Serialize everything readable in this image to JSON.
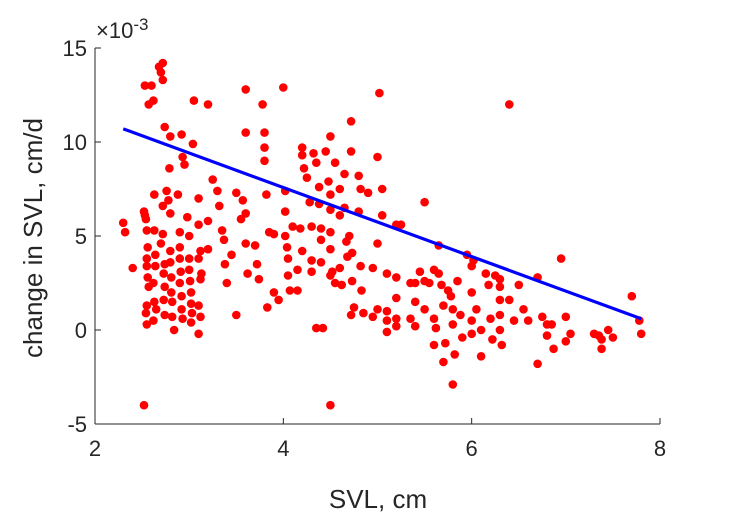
{
  "chart_data": {
    "type": "scatter",
    "title": "",
    "xlabel": "SVL, cm",
    "ylabel": "change in SVL, cm/d",
    "y_exponent_label": "×10",
    "y_exponent_power": "-3",
    "xlim": [
      2,
      8
    ],
    "ylim": [
      -5,
      15
    ],
    "x_ticks": [
      "2",
      "4",
      "6",
      "8"
    ],
    "y_ticks": [
      "-5",
      "0",
      "5",
      "10",
      "15"
    ],
    "grid": false,
    "marker_color": "#ff0000",
    "fit_line_color": "#0000ff",
    "fit_line": {
      "x": [
        2.3,
        7.8
      ],
      "y": [
        10.7,
        0.6
      ]
    },
    "points": [
      [
        2.3,
        5.7
      ],
      [
        2.32,
        5.2
      ],
      [
        2.4,
        3.3
      ],
      [
        2.52,
        6.3
      ],
      [
        2.53,
        6.1
      ],
      [
        2.54,
        5.9
      ],
      [
        2.55,
        5.3
      ],
      [
        2.56,
        4.4
      ],
      [
        2.55,
        3.8
      ],
      [
        2.55,
        3.4
      ],
      [
        2.56,
        2.8
      ],
      [
        2.57,
        2.3
      ],
      [
        2.55,
        1.3
      ],
      [
        2.54,
        0.9
      ],
      [
        2.55,
        0.3
      ],
      [
        2.52,
        -4.0
      ],
      [
        2.53,
        13.0
      ],
      [
        2.57,
        12.0
      ],
      [
        2.6,
        13.0
      ],
      [
        2.62,
        12.2
      ],
      [
        2.63,
        7.2
      ],
      [
        2.63,
        5.3
      ],
      [
        2.64,
        4.0
      ],
      [
        2.64,
        3.4
      ],
      [
        2.62,
        2.5
      ],
      [
        2.63,
        1.5
      ],
      [
        2.65,
        1.1
      ],
      [
        2.62,
        0.5
      ],
      [
        2.68,
        14.0
      ],
      [
        2.7,
        13.7
      ],
      [
        2.72,
        14.2
      ],
      [
        2.72,
        13.3
      ],
      [
        2.74,
        10.8
      ],
      [
        2.72,
        6.6
      ],
      [
        2.72,
        5.1
      ],
      [
        2.7,
        4.6
      ],
      [
        2.74,
        3.5
      ],
      [
        2.73,
        3.0
      ],
      [
        2.74,
        2.3
      ],
      [
        2.73,
        1.6
      ],
      [
        2.74,
        0.8
      ],
      [
        2.76,
        7.4
      ],
      [
        2.78,
        6.9
      ],
      [
        2.79,
        8.6
      ],
      [
        2.8,
        10.3
      ],
      [
        2.8,
        6.2
      ],
      [
        2.8,
        4.2
      ],
      [
        2.8,
        3.6
      ],
      [
        2.81,
        2.8
      ],
      [
        2.81,
        2.0
      ],
      [
        2.82,
        1.5
      ],
      [
        2.82,
        0.7
      ],
      [
        2.84,
        0.0
      ],
      [
        2.88,
        7.2
      ],
      [
        2.9,
        5.2
      ],
      [
        2.9,
        4.4
      ],
      [
        2.9,
        3.8
      ],
      [
        2.91,
        3.1
      ],
      [
        2.9,
        2.5
      ],
      [
        2.92,
        1.8
      ],
      [
        2.92,
        1.1
      ],
      [
        2.93,
        0.6
      ],
      [
        2.92,
        10.4
      ],
      [
        2.93,
        9.2
      ],
      [
        2.95,
        8.8
      ],
      [
        2.98,
        6.0
      ],
      [
        3.0,
        5.0
      ],
      [
        3.0,
        3.8
      ],
      [
        3.0,
        3.2
      ],
      [
        3.01,
        2.6
      ],
      [
        3.02,
        2.0
      ],
      [
        3.02,
        1.4
      ],
      [
        3.03,
        0.9
      ],
      [
        3.02,
        0.4
      ],
      [
        3.04,
        9.9
      ],
      [
        3.05,
        12.2
      ],
      [
        3.1,
        7.0
      ],
      [
        3.1,
        5.6
      ],
      [
        3.12,
        4.2
      ],
      [
        3.1,
        3.8
      ],
      [
        3.13,
        3.0
      ],
      [
        3.12,
        2.7
      ],
      [
        3.1,
        1.3
      ],
      [
        3.12,
        0.7
      ],
      [
        3.1,
        -0.2
      ],
      [
        3.2,
        12.0
      ],
      [
        3.2,
        4.3
      ],
      [
        3.2,
        5.8
      ],
      [
        3.25,
        8.0
      ],
      [
        3.3,
        7.4
      ],
      [
        3.32,
        6.6
      ],
      [
        3.35,
        5.3
      ],
      [
        3.37,
        4.8
      ],
      [
        3.38,
        3.5
      ],
      [
        3.4,
        2.5
      ],
      [
        3.45,
        4.0
      ],
      [
        3.5,
        7.3
      ],
      [
        3.5,
        0.8
      ],
      [
        3.55,
        5.9
      ],
      [
        3.57,
        6.9
      ],
      [
        3.6,
        6.2
      ],
      [
        3.6,
        12.8
      ],
      [
        3.6,
        10.5
      ],
      [
        3.6,
        4.6
      ],
      [
        3.62,
        3.0
      ],
      [
        3.7,
        4.5
      ],
      [
        3.72,
        3.5
      ],
      [
        3.74,
        2.7
      ],
      [
        3.78,
        12.0
      ],
      [
        3.8,
        10.5
      ],
      [
        3.8,
        9.7
      ],
      [
        3.8,
        9.0
      ],
      [
        3.82,
        7.2
      ],
      [
        3.85,
        5.2
      ],
      [
        3.83,
        1.2
      ],
      [
        3.9,
        5.1
      ],
      [
        3.9,
        2.0
      ],
      [
        3.95,
        1.6
      ],
      [
        4.0,
        12.9
      ],
      [
        4.02,
        7.4
      ],
      [
        4.02,
        6.3
      ],
      [
        4.02,
        5.0
      ],
      [
        4.04,
        4.4
      ],
      [
        4.05,
        3.8
      ],
      [
        4.05,
        2.9
      ],
      [
        4.07,
        2.1
      ],
      [
        4.1,
        5.5
      ],
      [
        4.15,
        3.2
      ],
      [
        4.15,
        2.1
      ],
      [
        4.18,
        5.4
      ],
      [
        4.2,
        4.2
      ],
      [
        4.2,
        9.7
      ],
      [
        4.2,
        9.3
      ],
      [
        4.22,
        8.6
      ],
      [
        4.25,
        8.1
      ],
      [
        4.28,
        6.8
      ],
      [
        4.3,
        5.5
      ],
      [
        4.3,
        3.7
      ],
      [
        4.3,
        3.1
      ],
      [
        4.32,
        9.4
      ],
      [
        4.35,
        8.9
      ],
      [
        4.38,
        7.6
      ],
      [
        4.38,
        6.7
      ],
      [
        4.4,
        5.4
      ],
      [
        4.4,
        4.8
      ],
      [
        4.4,
        3.6
      ],
      [
        4.35,
        0.1
      ],
      [
        4.42,
        0.1
      ],
      [
        4.45,
        9.5
      ],
      [
        4.48,
        7.9
      ],
      [
        4.5,
        7.2
      ],
      [
        4.5,
        6.4
      ],
      [
        4.5,
        5.2
      ],
      [
        4.5,
        4.3
      ],
      [
        4.52,
        3.1
      ],
      [
        4.55,
        2.5
      ],
      [
        4.5,
        2.9
      ],
      [
        4.5,
        -4.0
      ],
      [
        4.5,
        10.3
      ],
      [
        4.55,
        8.9
      ],
      [
        4.6,
        7.5
      ],
      [
        4.6,
        6.1
      ],
      [
        4.6,
        3.3
      ],
      [
        4.62,
        2.4
      ],
      [
        4.65,
        8.3
      ],
      [
        4.65,
        6.5
      ],
      [
        4.67,
        4.7
      ],
      [
        4.68,
        3.9
      ],
      [
        4.7,
        5.0
      ],
      [
        4.72,
        11.1
      ],
      [
        4.72,
        9.5
      ],
      [
        4.73,
        4.1
      ],
      [
        4.73,
        2.6
      ],
      [
        4.75,
        1.2
      ],
      [
        4.72,
        0.8
      ],
      [
        4.8,
        6.3
      ],
      [
        4.8,
        8.2
      ],
      [
        4.82,
        7.5
      ],
      [
        4.82,
        3.4
      ],
      [
        4.83,
        2.1
      ],
      [
        4.85,
        0.9
      ],
      [
        4.9,
        7.3
      ],
      [
        4.95,
        3.3
      ],
      [
        4.95,
        0.7
      ],
      [
        5.0,
        9.2
      ],
      [
        5.0,
        4.6
      ],
      [
        5.0,
        1.1
      ],
      [
        5.02,
        12.6
      ],
      [
        5.05,
        7.5
      ],
      [
        5.05,
        6.1
      ],
      [
        5.1,
        3.0
      ],
      [
        5.1,
        1.0
      ],
      [
        5.1,
        0.5
      ],
      [
        5.1,
        -0.1
      ],
      [
        5.2,
        5.6
      ],
      [
        5.2,
        2.8
      ],
      [
        5.2,
        1.7
      ],
      [
        5.2,
        0.6
      ],
      [
        5.2,
        0.2
      ],
      [
        5.25,
        5.6
      ],
      [
        5.35,
        2.5
      ],
      [
        5.35,
        0.6
      ],
      [
        5.4,
        2.5
      ],
      [
        5.4,
        1.5
      ],
      [
        5.4,
        0.2
      ],
      [
        5.45,
        3.1
      ],
      [
        5.5,
        6.8
      ],
      [
        5.5,
        2.6
      ],
      [
        5.5,
        1.1
      ],
      [
        5.55,
        2.5
      ],
      [
        5.6,
        3.2
      ],
      [
        5.6,
        0.6
      ],
      [
        5.6,
        -0.8
      ],
      [
        5.62,
        0.1
      ],
      [
        5.65,
        4.5
      ],
      [
        5.65,
        3.0
      ],
      [
        5.68,
        2.4
      ],
      [
        5.7,
        1.3
      ],
      [
        5.7,
        -1.7
      ],
      [
        5.72,
        -0.7
      ],
      [
        5.75,
        2.1
      ],
      [
        5.78,
        1.8
      ],
      [
        5.8,
        1.1
      ],
      [
        5.8,
        0.3
      ],
      [
        5.82,
        -1.3
      ],
      [
        5.8,
        -2.9
      ],
      [
        5.85,
        2.6
      ],
      [
        5.88,
        0.8
      ],
      [
        5.9,
        -0.4
      ],
      [
        5.95,
        4.0
      ],
      [
        6.0,
        3.4
      ],
      [
        6.0,
        2.0
      ],
      [
        6.0,
        0.5
      ],
      [
        6.0,
        -0.2
      ],
      [
        6.02,
        3.7
      ],
      [
        6.05,
        1.1
      ],
      [
        6.1,
        -1.4
      ],
      [
        6.1,
        0.0
      ],
      [
        6.15,
        3.0
      ],
      [
        6.18,
        2.4
      ],
      [
        6.2,
        0.6
      ],
      [
        6.22,
        -0.5
      ],
      [
        6.25,
        2.9
      ],
      [
        6.3,
        2.7
      ],
      [
        6.3,
        2.3
      ],
      [
        6.3,
        1.6
      ],
      [
        6.3,
        0.8
      ],
      [
        6.3,
        0.0
      ],
      [
        6.32,
        -0.8
      ],
      [
        6.4,
        12.0
      ],
      [
        6.4,
        1.6
      ],
      [
        6.45,
        0.5
      ],
      [
        6.5,
        2.4
      ],
      [
        6.55,
        1.1
      ],
      [
        6.6,
        0.5
      ],
      [
        6.7,
        2.8
      ],
      [
        6.7,
        -1.8
      ],
      [
        6.75,
        0.7
      ],
      [
        6.8,
        0.3
      ],
      [
        6.8,
        -0.3
      ],
      [
        6.85,
        0.3
      ],
      [
        6.87,
        -1.0
      ],
      [
        6.95,
        3.8
      ],
      [
        7.0,
        0.7
      ],
      [
        7.0,
        -0.6
      ],
      [
        7.05,
        -0.2
      ],
      [
        7.3,
        -0.2
      ],
      [
        7.35,
        -0.3
      ],
      [
        7.38,
        -0.5
      ],
      [
        7.38,
        -1.0
      ],
      [
        7.45,
        0.0
      ],
      [
        7.5,
        -0.4
      ],
      [
        7.7,
        1.8
      ],
      [
        7.78,
        0.5
      ],
      [
        7.8,
        -0.2
      ]
    ]
  }
}
